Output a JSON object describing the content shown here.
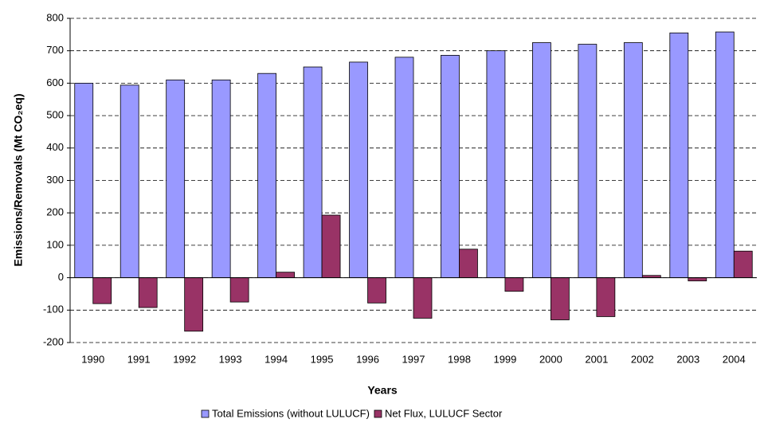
{
  "chart_data": {
    "type": "bar",
    "x_label": "Years",
    "y_label": "Emissions/Removals (Mt CO₂eq)",
    "categories": [
      "1990",
      "1991",
      "1992",
      "1993",
      "1994",
      "1995",
      "1996",
      "1997",
      "1998",
      "1999",
      "2000",
      "2001",
      "2002",
      "2003",
      "2004"
    ],
    "series": [
      {
        "name": "Total Emissions (without LULUCF)",
        "color": "#9999ff",
        "values": [
          600,
          594,
          610,
          610,
          630,
          650,
          665,
          680,
          686,
          700,
          725,
          720,
          725,
          755,
          758
        ]
      },
      {
        "name": "Net Flux, LULUCF Sector",
        "color": "#993366",
        "values": [
          -80,
          -92,
          -165,
          -75,
          17,
          193,
          -78,
          -125,
          88,
          -42,
          -130,
          -120,
          7,
          -10,
          82
        ]
      }
    ],
    "ylim": [
      -200,
      800
    ],
    "yticks": [
      -200,
      -100,
      0,
      100,
      200,
      300,
      400,
      500,
      600,
      700,
      800
    ],
    "grid": true,
    "legend": "bottom"
  }
}
